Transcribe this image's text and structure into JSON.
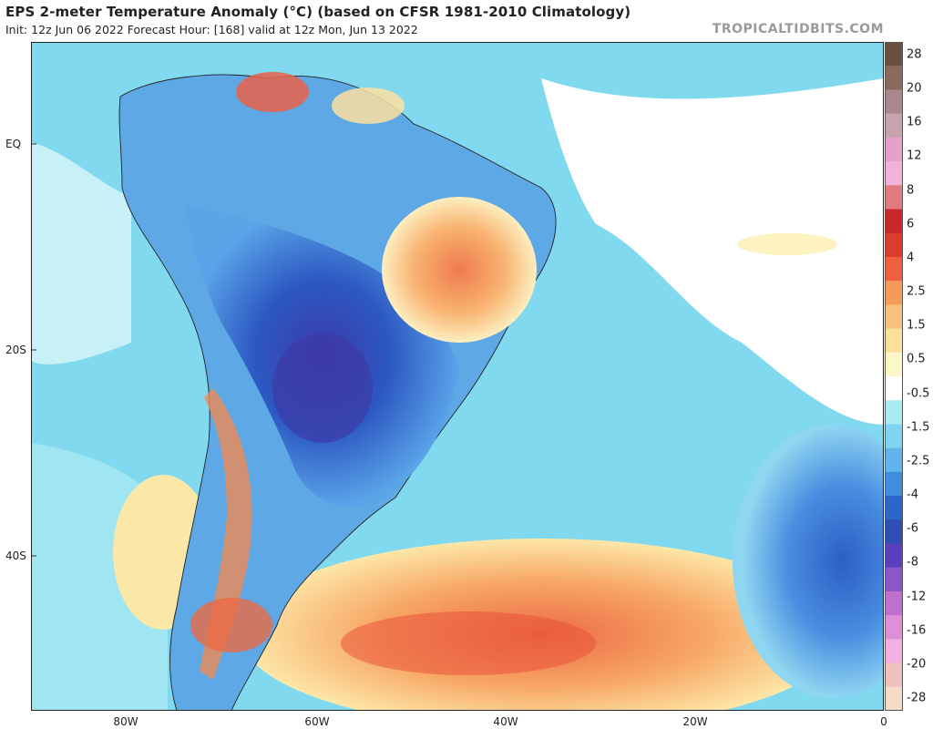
{
  "header": {
    "title": "EPS 2-meter Temperature Anomaly (°C) (based on CFSR 1981-2010 Climatology)",
    "subtitle": "Init: 12z Jun 06 2022   Forecast Hour: [168]   valid at 12z Mon, Jun 13 2022",
    "brand": "TROPICALTIDBITS.COM"
  },
  "axes": {
    "lat_labels": [
      {
        "text": "EQ"
      },
      {
        "text": "20S"
      },
      {
        "text": "40S"
      }
    ],
    "lon_labels": [
      {
        "text": "80W"
      },
      {
        "text": "60W"
      },
      {
        "text": "40W"
      },
      {
        "text": "20W"
      },
      {
        "text": "0"
      }
    ]
  },
  "colorbar": {
    "labels": [
      "28",
      "20",
      "16",
      "12",
      "8",
      "6",
      "4",
      "2.5",
      "1.5",
      "0.5",
      "-0.5",
      "-1.5",
      "-2.5",
      "-4",
      "-6",
      "-8",
      "-12",
      "-16",
      "-20",
      "-28"
    ],
    "colors": [
      "#6b4f40",
      "#8a6a5d",
      "#a8888a",
      "#c8a3ad",
      "#e6a1c8",
      "#f0b3d7",
      "#e07c80",
      "#c8282c",
      "#dc3c2c",
      "#ee6040",
      "#f59b5a",
      "#f8c07a",
      "#fbe09b",
      "#fdf7c8",
      "#ffffff",
      "#a8ecf2",
      "#7fd5ef",
      "#5fb5ec",
      "#3f8fe0",
      "#2b66c8",
      "#2e4eb4",
      "#5a3fbe",
      "#8a57c8",
      "#c071cf",
      "#df8ed8",
      "#f0b0e0",
      "#f1c0c0",
      "#f5dcc8"
    ]
  },
  "regions": [
    {
      "name": "south-america-landmass",
      "color": "#ffffff"
    },
    {
      "name": "ocean",
      "color": "#7fd8ef"
    }
  ]
}
